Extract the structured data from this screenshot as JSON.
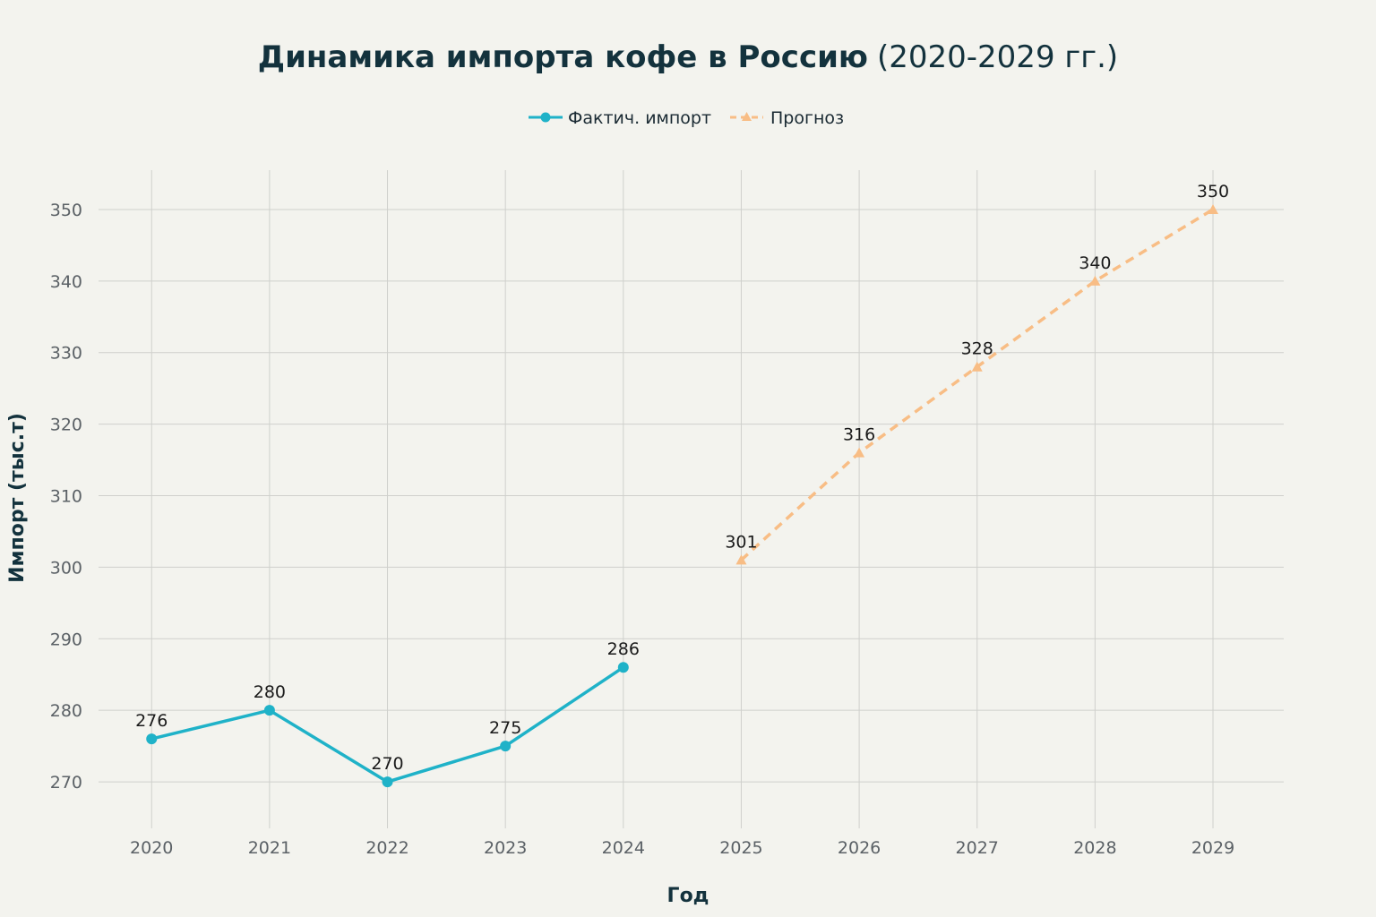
{
  "chart_data": {
    "type": "line",
    "title_main": "Динамика импорта кофе в Россию",
    "title_sub": "(2020-2029 гг.)",
    "xlabel": "Год",
    "ylabel": "Импорт (тыс.т)",
    "x_ticks": [
      "2020",
      "2021",
      "2022",
      "2023",
      "2024",
      "2025",
      "2026",
      "2027",
      "2028",
      "2029"
    ],
    "y_ticks": [
      "270",
      "280",
      "290",
      "300",
      "310",
      "320",
      "330",
      "340",
      "350"
    ],
    "xlim": [
      2019.55,
      2029.6
    ],
    "ylim": [
      263.5,
      355.5
    ],
    "grid": true,
    "legend_position": "top-center",
    "series": [
      {
        "name": "Фактич. импорт",
        "style": "solid",
        "marker": "circle",
        "color": "#1fb2c8",
        "x": [
          2020,
          2021,
          2022,
          2023,
          2024
        ],
        "y": [
          276,
          280,
          270,
          275,
          286
        ],
        "labels": [
          "276",
          "280",
          "270",
          "275",
          "286"
        ]
      },
      {
        "name": "Прогноз",
        "style": "dashed",
        "marker": "triangle",
        "color": "#f8bd85",
        "x": [
          2025,
          2026,
          2027,
          2028,
          2029
        ],
        "y": [
          301,
          316,
          328,
          340,
          350
        ],
        "labels": [
          "301",
          "316",
          "328",
          "340",
          "350"
        ]
      }
    ]
  }
}
